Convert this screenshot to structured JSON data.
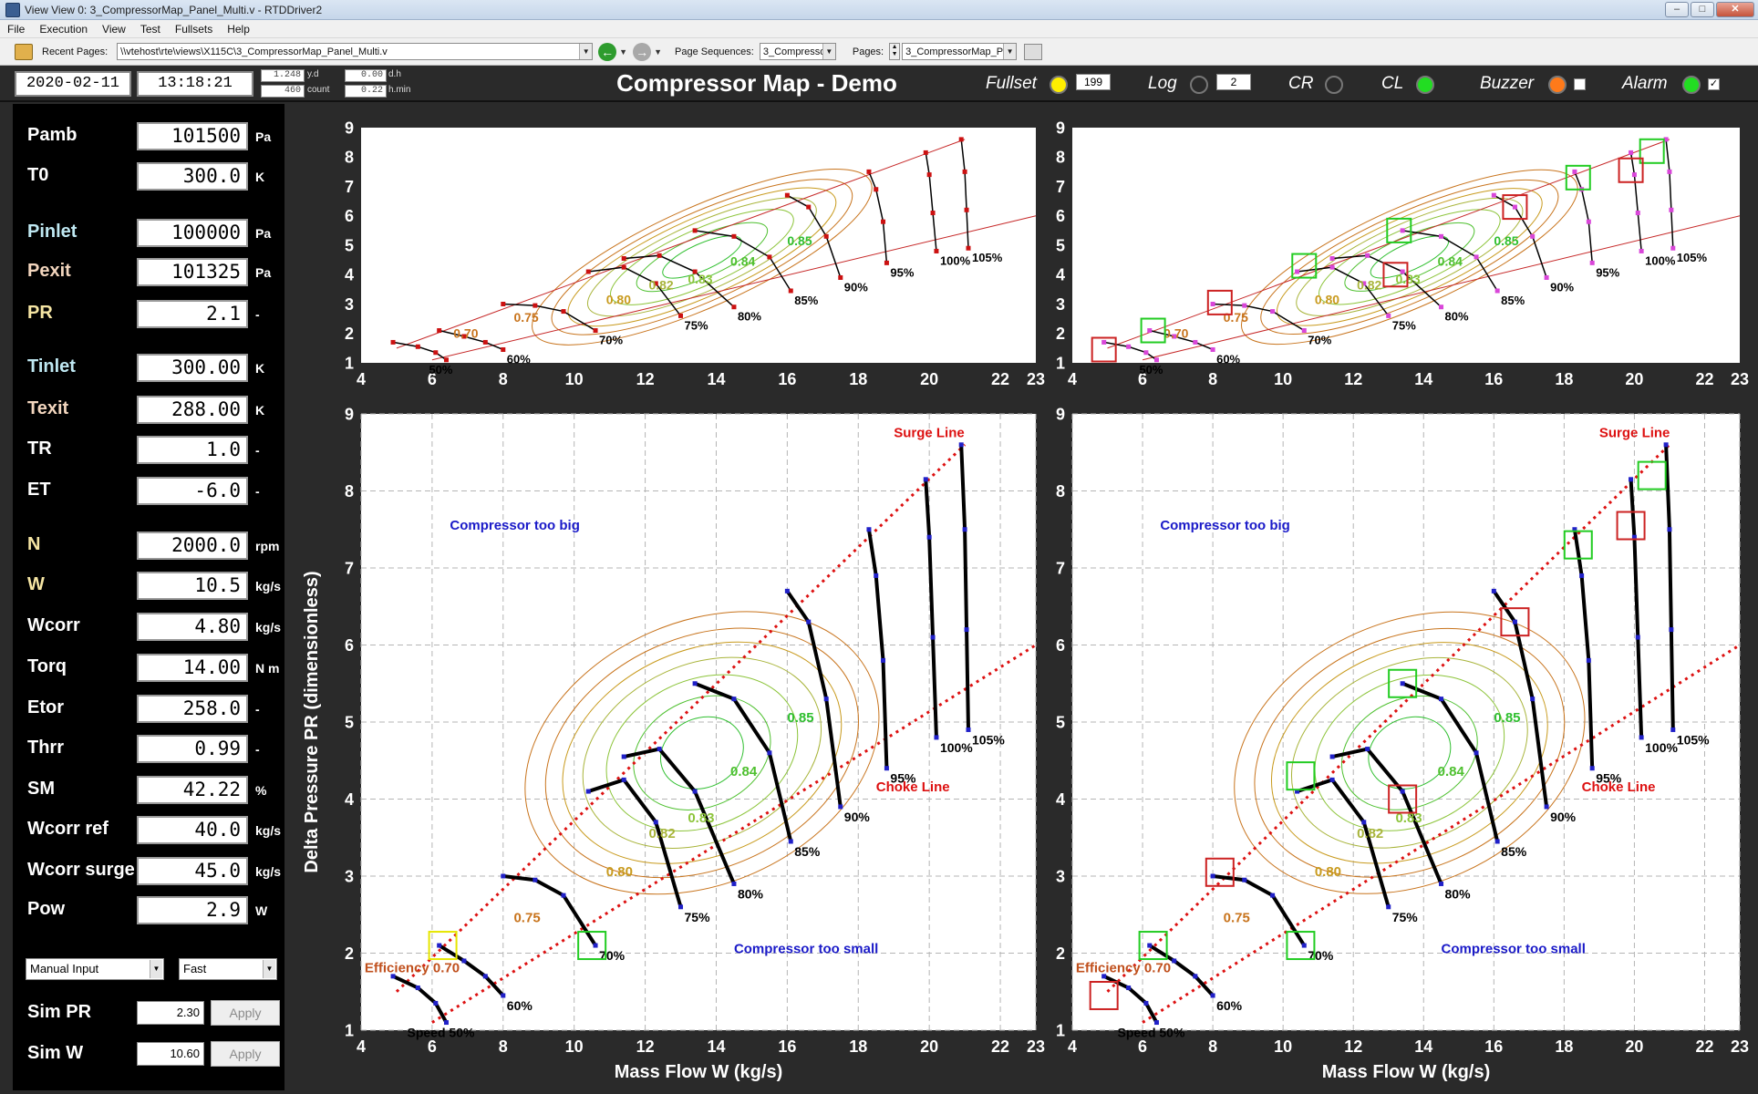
{
  "window": {
    "title": "View View 0: 3_CompressorMap_Panel_Multi.v - RTDDriver2"
  },
  "menu": [
    "File",
    "Execution",
    "View",
    "Test",
    "Fullsets",
    "Help"
  ],
  "toolbar": {
    "recent_pages_label": "Recent Pages:",
    "recent_pages_value": "\\\\vtehost\\rte\\views\\X115C\\3_CompressorMap_Panel_Multi.v",
    "page_sequences_label": "Page Sequences:",
    "page_sequences_value": "3_Compresso",
    "pages_label": "Pages:",
    "pages_value": "3_CompressorMap_Pa"
  },
  "header": {
    "date": "2020-02-11",
    "time": "13:18:21",
    "yd_value": "1.248",
    "yd_label": "y.d",
    "count_value": "460",
    "count_label": "count",
    "dh_value": "0.00",
    "dh_label": "d.h",
    "hmin_value": "0.22",
    "hmin_label": "h.min",
    "title": "Compressor Map - Demo",
    "fullset_label": "Fullset",
    "fullset_value": "199",
    "log_label": "Log",
    "log_value": "2",
    "cr_label": "CR",
    "cl_label": "CL",
    "buzzer_label": "Buzzer",
    "alarm_label": "Alarm",
    "alarm_check": "✓",
    "colors": {
      "fullset": "#ffee00",
      "log": "#2a2a2a",
      "cr": "#2a2a2a",
      "cl": "#22dd22",
      "buzzer": "#ff7a1a",
      "alarm": "#22dd22"
    }
  },
  "params": [
    {
      "label": "Pamb",
      "value": "101500",
      "unit": "Pa",
      "color": "white"
    },
    {
      "label": "T0",
      "value": "300.0",
      "unit": "K",
      "color": "white"
    },
    {
      "label": "Pinlet",
      "value": "100000",
      "unit": "Pa",
      "color": "cyan"
    },
    {
      "label": "Pexit",
      "value": "101325",
      "unit": "Pa",
      "color": "peach"
    },
    {
      "label": "PR",
      "value": "2.1",
      "unit": "-",
      "color": "yellow"
    },
    {
      "label": "Tinlet",
      "value": "300.00",
      "unit": "K",
      "color": "cyan"
    },
    {
      "label": "Texit",
      "value": "288.00",
      "unit": "K",
      "color": "peach"
    },
    {
      "label": "TR",
      "value": "1.0",
      "unit": "-",
      "color": "white"
    },
    {
      "label": "ET",
      "value": "-6.0",
      "unit": "-",
      "color": "white"
    },
    {
      "label": "N",
      "value": "2000.0",
      "unit": "rpm",
      "color": "yellow"
    },
    {
      "label": "W",
      "value": "10.5",
      "unit": "kg/s",
      "color": "yellow"
    },
    {
      "label": "Wcorr",
      "value": "4.80",
      "unit": "kg/s",
      "color": "white"
    },
    {
      "label": "Torq",
      "value": "14.00",
      "unit": "N m",
      "color": "white"
    },
    {
      "label": "Etor",
      "value": "258.0",
      "unit": "-",
      "color": "white"
    },
    {
      "label": "Thrr",
      "value": "0.99",
      "unit": "-",
      "color": "white"
    },
    {
      "label": "SM",
      "value": "42.22",
      "unit": "%",
      "color": "white"
    },
    {
      "label": "Wcorr ref",
      "value": "40.0",
      "unit": "kg/s",
      "color": "white"
    },
    {
      "label": "Wcorr surge",
      "value": "45.0",
      "unit": "kg/s",
      "color": "white"
    },
    {
      "label": "Pow",
      "value": "2.9",
      "unit": "W",
      "color": "white"
    }
  ],
  "controls": {
    "mode": "Manual Input",
    "speed": "Fast",
    "sim_pr_label": "Sim PR",
    "sim_pr_value": "2.30",
    "sim_w_label": "Sim W",
    "sim_w_value": "10.60",
    "apply_label": "Apply"
  },
  "chart_data": [
    {
      "id": "map-top-left",
      "type": "line",
      "xlim": [
        4,
        23
      ],
      "ylim": [
        1,
        9
      ],
      "xticks": [
        "4",
        "6",
        "8",
        "10",
        "12",
        "14",
        "16",
        "18",
        "20",
        "22",
        "23"
      ],
      "yticks": [
        "1",
        "2",
        "3",
        "4",
        "5",
        "6",
        "7",
        "8",
        "9"
      ],
      "speed_lines": [
        {
          "label": "50%",
          "x": [
            4.9,
            5.6,
            6.1,
            6.4
          ],
          "y": [
            1.7,
            1.55,
            1.35,
            1.1
          ]
        },
        {
          "label": "60%",
          "x": [
            6.2,
            6.9,
            7.5,
            8.0
          ],
          "y": [
            2.1,
            1.9,
            1.7,
            1.45
          ]
        },
        {
          "label": "70%",
          "x": [
            8.0,
            8.9,
            9.7,
            10.6
          ],
          "y": [
            3.0,
            2.95,
            2.75,
            2.1
          ]
        },
        {
          "label": "75%",
          "x": [
            10.4,
            11.4,
            12.3,
            13.0
          ],
          "y": [
            4.1,
            4.25,
            3.7,
            2.6
          ]
        },
        {
          "label": "80%",
          "x": [
            11.4,
            12.4,
            13.4,
            14.5
          ],
          "y": [
            4.55,
            4.65,
            4.1,
            2.9
          ]
        },
        {
          "label": "85%",
          "x": [
            13.4,
            14.5,
            15.5,
            16.1
          ],
          "y": [
            5.5,
            5.3,
            4.6,
            3.45
          ]
        },
        {
          "label": "90%",
          "x": [
            16.0,
            16.6,
            17.1,
            17.5
          ],
          "y": [
            6.7,
            6.3,
            5.3,
            3.9
          ]
        },
        {
          "label": "95%",
          "x": [
            18.3,
            18.5,
            18.7,
            18.8
          ],
          "y": [
            7.5,
            6.9,
            5.8,
            4.4
          ]
        },
        {
          "label": "100%",
          "x": [
            19.9,
            20.0,
            20.1,
            20.2
          ],
          "y": [
            8.15,
            7.4,
            6.1,
            4.8
          ]
        },
        {
          "label": "105%",
          "x": [
            20.9,
            21.0,
            21.05,
            21.1
          ],
          "y": [
            8.6,
            7.5,
            6.2,
            4.9
          ]
        }
      ],
      "surge_line": {
        "x": [
          5.0,
          21.0
        ],
        "y": [
          1.5,
          8.6
        ]
      },
      "choke_line": {
        "x": [
          6.0,
          23.0
        ],
        "y": [
          1.1,
          6.0
        ]
      },
      "efficiency_labels": [
        {
          "text": "0.70",
          "x": 6.6,
          "y": 1.85
        },
        {
          "text": "0.75",
          "x": 8.3,
          "y": 2.4
        },
        {
          "text": "0.80",
          "x": 10.9,
          "y": 3.0
        },
        {
          "text": "0.82",
          "x": 12.1,
          "y": 3.5
        },
        {
          "text": "0.83",
          "x": 13.2,
          "y": 3.7
        },
        {
          "text": "0.84",
          "x": 14.4,
          "y": 4.3
        },
        {
          "text": "0.85",
          "x": 16.0,
          "y": 5.0
        }
      ]
    },
    {
      "id": "map-top-right",
      "type": "line",
      "xlim": [
        4,
        23
      ],
      "ylim": [
        1,
        9
      ],
      "xticks": [
        "4",
        "6",
        "8",
        "10",
        "12",
        "14",
        "16",
        "18",
        "20",
        "22",
        "23"
      ],
      "yticks": [
        "1",
        "2",
        "3",
        "4",
        "5",
        "6",
        "7",
        "8",
        "9"
      ],
      "speed_labels": [
        "50%",
        "60%",
        "70%",
        "75%",
        "80%",
        "85%",
        "90%",
        "95%",
        "100%",
        "105%"
      ],
      "efficiency_labels": [
        "0.70",
        "0.75",
        "0.80",
        "0.82",
        "0.83",
        "0.84",
        "0.85"
      ],
      "markers_green": [
        [
          6.3,
          2.1
        ],
        [
          10.6,
          4.3
        ],
        [
          13.3,
          5.5
        ],
        [
          18.4,
          7.3
        ],
        [
          20.5,
          8.2
        ]
      ],
      "markers_red": [
        [
          4.9,
          1.45
        ],
        [
          8.2,
          3.05
        ],
        [
          13.2,
          4.0
        ],
        [
          16.6,
          6.3
        ],
        [
          19.9,
          7.55
        ]
      ]
    },
    {
      "id": "map-bottom-left",
      "type": "line",
      "xlim": [
        4,
        23
      ],
      "ylim": [
        1,
        9
      ],
      "xticks": [
        "4",
        "6",
        "8",
        "10",
        "12",
        "14",
        "16",
        "18",
        "20",
        "22",
        "23"
      ],
      "yticks": [
        "1",
        "2",
        "3",
        "4",
        "5",
        "6",
        "7",
        "8",
        "9"
      ],
      "xlabel": "Mass Flow W (kg/s)",
      "ylabel": "Delta Pressure PR (dimensionless)",
      "speed_labels": [
        "Speed 50%",
        "60%",
        "70%",
        "75%",
        "80%",
        "85%",
        "90%",
        "95%",
        "100%",
        "105%"
      ],
      "annotations": [
        "Surge Line",
        "Choke Line",
        "Compressor too big",
        "Compressor too small",
        "Efficiency 0.70"
      ],
      "efficiency_labels": [
        "0.75",
        "0.80",
        "0.82",
        "0.83",
        "0.84",
        "0.85"
      ],
      "markers_yellow": [
        [
          6.3,
          2.1
        ]
      ],
      "markers_green": [
        [
          10.5,
          2.1
        ]
      ]
    },
    {
      "id": "map-bottom-right",
      "type": "line",
      "xlim": [
        4,
        23
      ],
      "ylim": [
        1,
        9
      ],
      "xticks": [
        "4",
        "6",
        "8",
        "10",
        "12",
        "14",
        "16",
        "18",
        "20",
        "22",
        "23"
      ],
      "yticks": [
        "1",
        "2",
        "3",
        "4",
        "5",
        "6",
        "7",
        "8",
        "9"
      ],
      "xlabel": "Mass Flow W (kg/s)",
      "speed_labels": [
        "Speed 50%",
        "60%",
        "70%",
        "75%",
        "80%",
        "85%",
        "90%",
        "95%",
        "100%",
        "105%"
      ],
      "annotations": [
        "Surge Line",
        "Choke Line",
        "Compressor too big",
        "Compressor too small",
        "Efficiency 0.70"
      ],
      "efficiency_labels": [
        "0.75",
        "0.80",
        "0.82",
        "0.83",
        "0.84",
        "0.85"
      ],
      "markers_green": [
        [
          6.3,
          2.1
        ],
        [
          10.5,
          2.1
        ],
        [
          10.5,
          4.3
        ],
        [
          13.4,
          5.5
        ],
        [
          18.4,
          7.3
        ],
        [
          20.5,
          8.2
        ]
      ],
      "markers_red": [
        [
          4.9,
          1.45
        ],
        [
          8.2,
          3.05
        ],
        [
          13.4,
          4.0
        ],
        [
          16.6,
          6.3
        ],
        [
          19.9,
          7.55
        ]
      ]
    }
  ]
}
